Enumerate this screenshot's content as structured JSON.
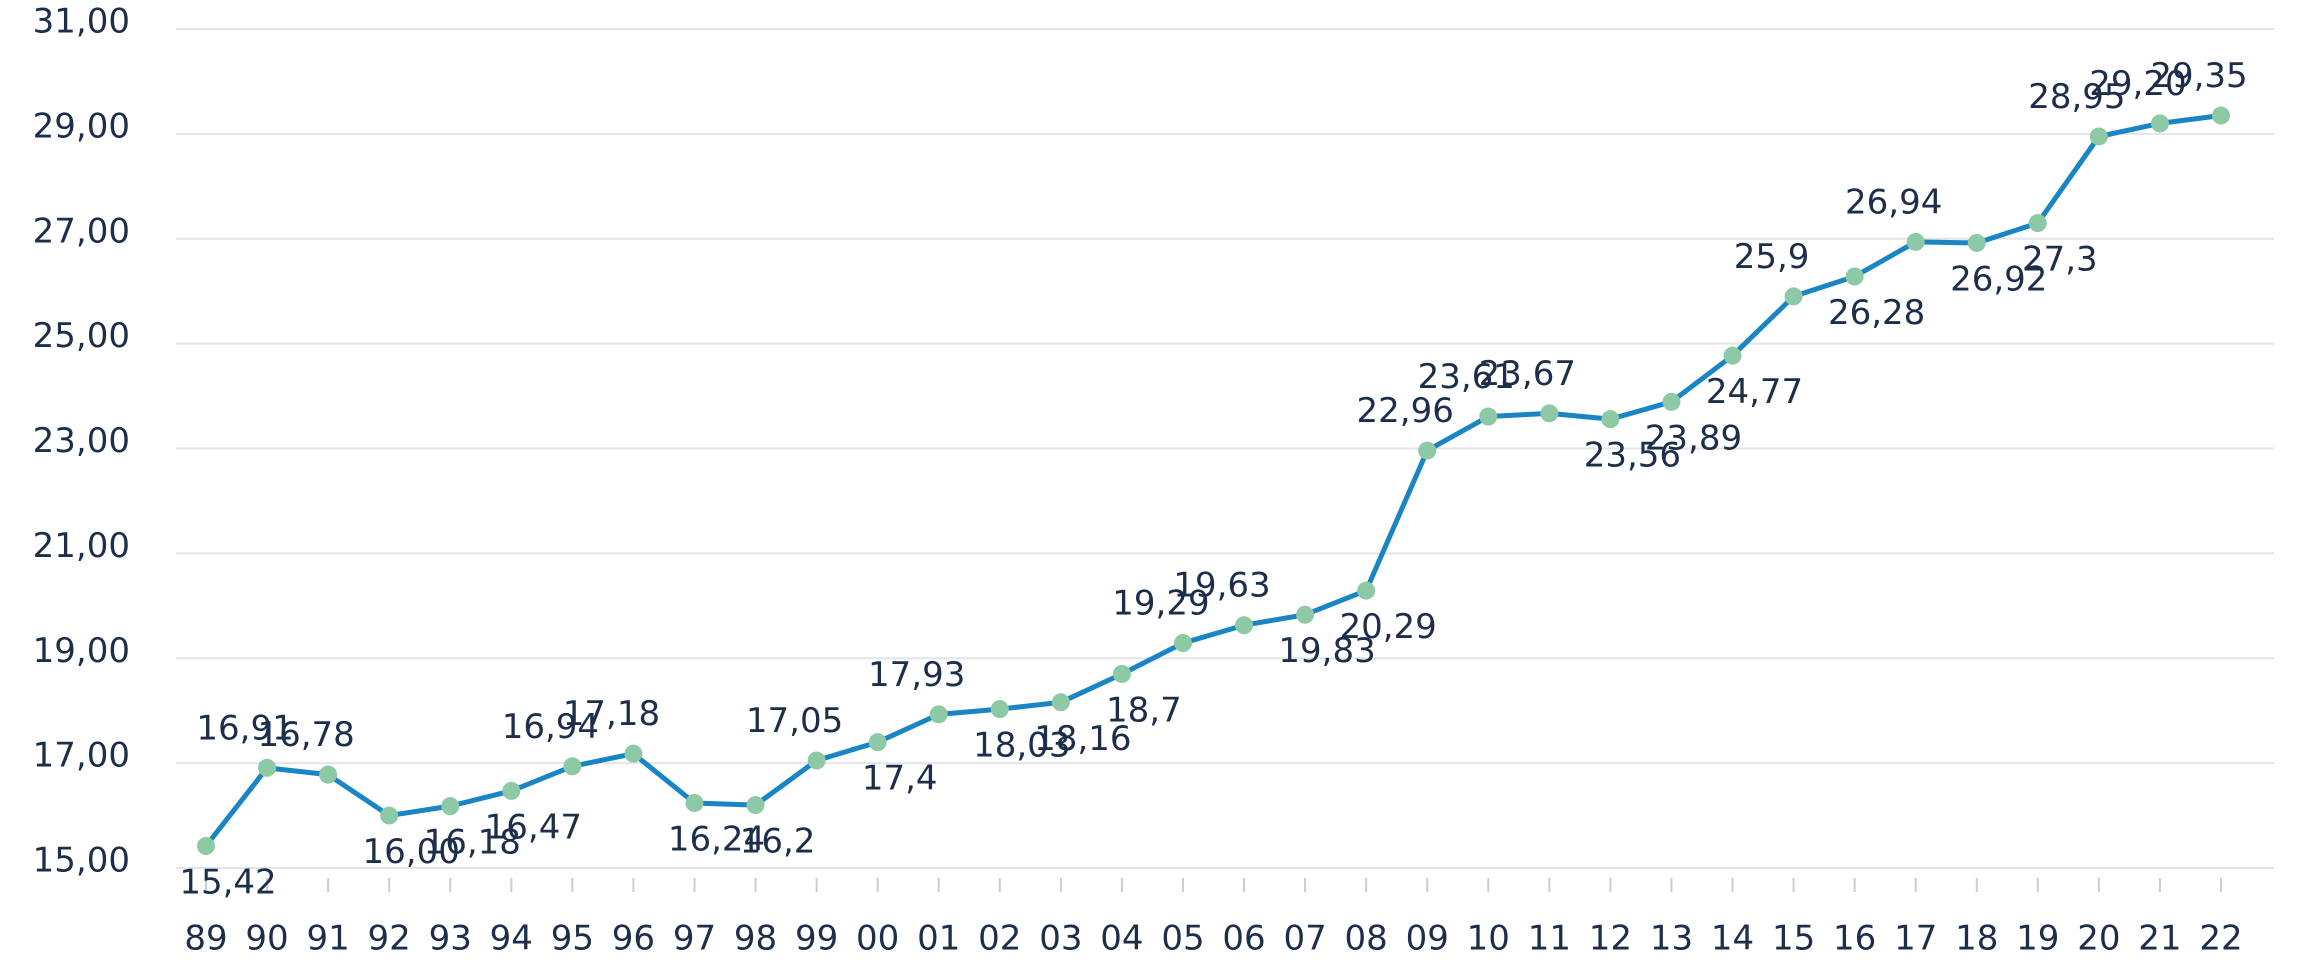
{
  "chart_data": {
    "type": "line",
    "categories": [
      "89",
      "90",
      "91",
      "92",
      "93",
      "94",
      "95",
      "96",
      "97",
      "98",
      "99",
      "00",
      "01",
      "02",
      "03",
      "04",
      "05",
      "06",
      "07",
      "08",
      "09",
      "10",
      "11",
      "12",
      "13",
      "14",
      "15",
      "16",
      "17",
      "18",
      "19",
      "20",
      "21",
      "22"
    ],
    "series": [
      {
        "color": "#1a85c4",
        "values": [
          15.42,
          16.91,
          16.78,
          16.0,
          16.18,
          16.47,
          16.94,
          17.18,
          16.24,
          16.2,
          17.05,
          17.4,
          17.93,
          18.03,
          18.16,
          18.7,
          19.29,
          19.63,
          19.83,
          20.29,
          22.96,
          23.61,
          23.67,
          23.56,
          23.89,
          24.77,
          25.9,
          26.28,
          26.94,
          26.92,
          27.3,
          28.95,
          29.2,
          29.35
        ],
        "value_labels": [
          "15,42",
          "16,91",
          "16,78",
          "16,00",
          "16,18",
          "16,47",
          "16,94",
          "17,18",
          "16,24",
          "16,2",
          "17,05",
          "17,4",
          "17,93",
          "18,03",
          "18,16",
          "18,7",
          "19,29",
          "19,63",
          "19,83",
          "20,29",
          "22,96",
          "23,61",
          "23,67",
          "23,56",
          "23,89",
          "24,77",
          "25,9",
          "26,28",
          "26,94",
          "26,92",
          "27,3",
          "28,95",
          "29,20",
          "29,35"
        ]
      }
    ],
    "marker_color": "#8cc9a4",
    "ylim": [
      15,
      31
    ],
    "yticks": [
      {
        "value": 15,
        "label": "15,00"
      },
      {
        "value": 17,
        "label": "17,00"
      },
      {
        "value": 19,
        "label": "19,00"
      },
      {
        "value": 21,
        "label": "21,00"
      },
      {
        "value": 23,
        "label": "23,00"
      },
      {
        "value": 25,
        "label": "25,00"
      },
      {
        "value": 27,
        "label": "27,00"
      },
      {
        "value": 29,
        "label": "29,00"
      },
      {
        "value": 31,
        "label": "31,00"
      }
    ],
    "grid": true
  }
}
